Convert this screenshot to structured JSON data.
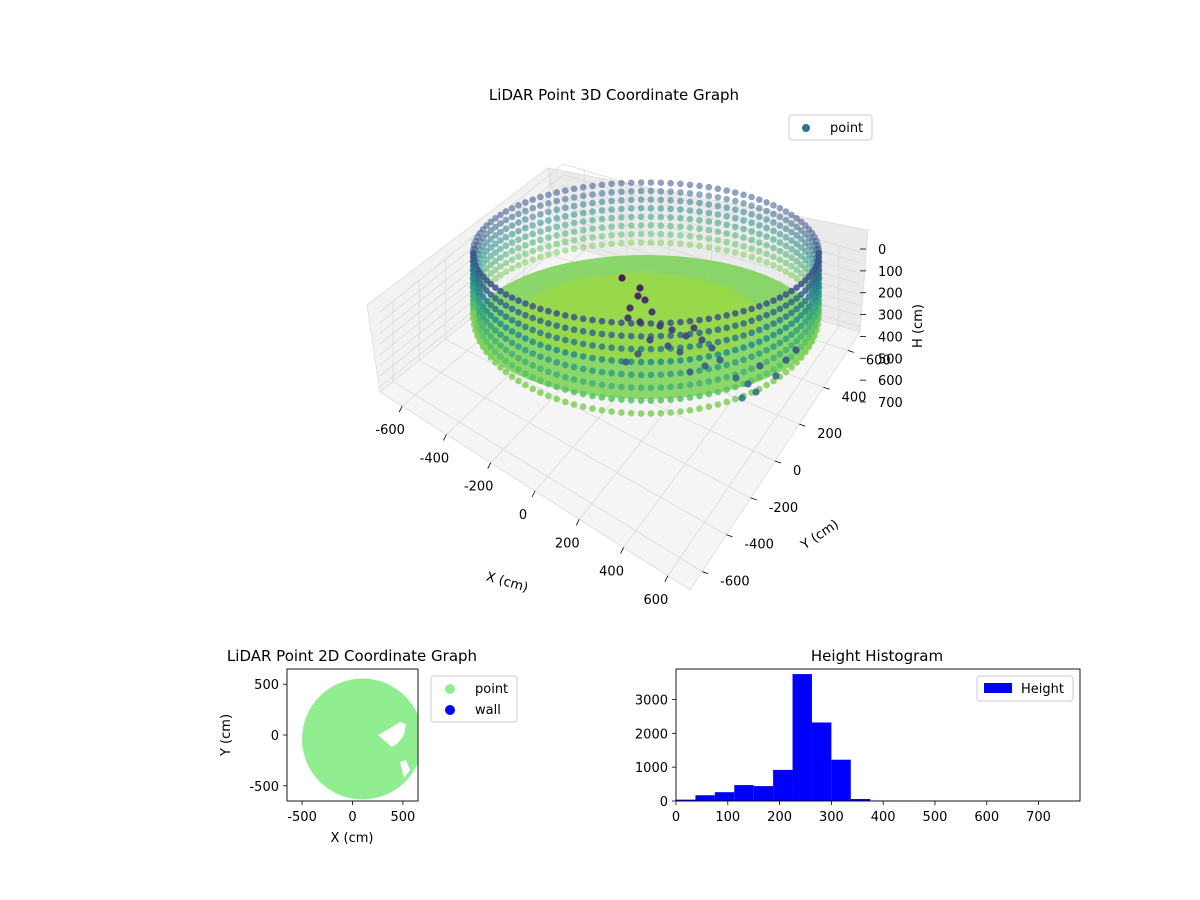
{
  "colors": {
    "point_3d_legend": "#2a788e",
    "point_2d": "#90ee90",
    "wall_2d": "#0000ff",
    "histogram": "#0000ff",
    "colormap": [
      "#440154",
      "#3b528b",
      "#21918c",
      "#5ec962",
      "#fde725"
    ]
  },
  "chart_data": [
    {
      "type": "scatter3d",
      "title": "LiDAR Point 3D Coordinate Graph",
      "xlabel": "X (cm)",
      "ylabel": "Y (cm)",
      "zlabel": "H (cm)",
      "xlim": [
        -700,
        700
      ],
      "ylim": [
        -700,
        700
      ],
      "zlim": [
        0,
        750
      ],
      "z_inverted": true,
      "x_ticks": [
        "-600",
        "-400",
        "-200",
        "0",
        "200",
        "400",
        "600"
      ],
      "y_ticks": [
        "-600",
        "-400",
        "-200",
        "0",
        "200",
        "400",
        "600"
      ],
      "z_ticks": [
        "0",
        "100",
        "200",
        "300",
        "400",
        "500",
        "600",
        "700"
      ],
      "legend": {
        "entries": [
          "point"
        ],
        "placement": "top-right"
      },
      "colormap": "viridis",
      "grid": true,
      "point_groups": [
        {
          "shape": "ring wall",
          "radius_cm": 600,
          "height_range_cm": [
            0,
            750
          ]
        },
        {
          "shape": "floor disc",
          "radius_cm": 600,
          "height_cm": 250
        }
      ]
    },
    {
      "type": "scatter",
      "title": "LiDAR Point 2D Coordinate Graph",
      "xlabel": "X (cm)",
      "ylabel": "Y (cm)",
      "xlim": [
        -650,
        650
      ],
      "ylim": [
        -650,
        650
      ],
      "x_ticks": [
        "-500",
        "0",
        "500"
      ],
      "y_ticks": [
        "-500",
        "0",
        "500"
      ],
      "legend": {
        "entries": [
          "point",
          "wall"
        ],
        "placement": "outside-right"
      },
      "series": [
        {
          "name": "point",
          "shape": "disc",
          "radius_cm": 600
        },
        {
          "name": "wall",
          "shape": "none visible"
        }
      ]
    },
    {
      "type": "bar",
      "title": "Height Histogram",
      "xlim": [
        0,
        780
      ],
      "ylim": [
        0,
        3900
      ],
      "x_ticks": [
        "0",
        "100",
        "200",
        "300",
        "400",
        "500",
        "600",
        "700"
      ],
      "y_ticks": [
        "0",
        "1000",
        "2000",
        "3000"
      ],
      "legend": {
        "entries": [
          "Height"
        ],
        "placement": "top-right"
      },
      "bin_edges": [
        0,
        37.5,
        75,
        112.5,
        150,
        187.5,
        225,
        262.5,
        300,
        337.5,
        375,
        412.5,
        450,
        487.5,
        525,
        562.5,
        600,
        637.5,
        675,
        712.5,
        750
      ],
      "values": [
        40,
        170,
        260,
        470,
        440,
        920,
        3750,
        2320,
        1220,
        60,
        15,
        10,
        8,
        6,
        5,
        5,
        4,
        4,
        3,
        3
      ]
    }
  ]
}
